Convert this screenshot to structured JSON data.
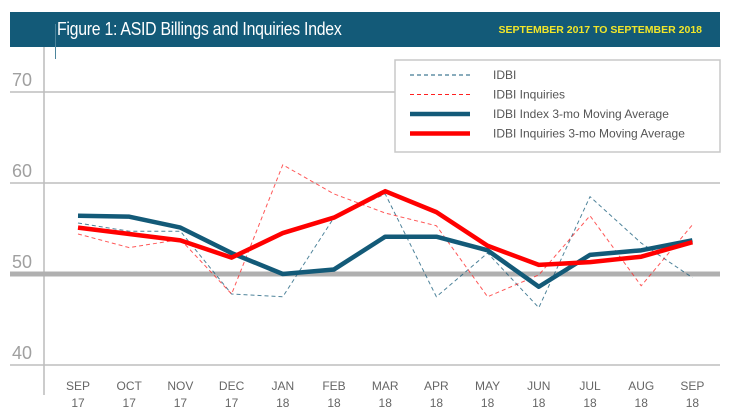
{
  "chart_data": {
    "type": "line",
    "title": "Figure 1: ASID Billings and Inquiries Index",
    "subtitle": "SEPTEMBER 2017 TO SEPTEMBER 2018",
    "categories": [
      [
        "SEP",
        "17"
      ],
      [
        "OCT",
        "17"
      ],
      [
        "NOV",
        "17"
      ],
      [
        "DEC",
        "17"
      ],
      [
        "JAN",
        "18"
      ],
      [
        "FEB",
        "18"
      ],
      [
        "MAR",
        "18"
      ],
      [
        "APR",
        "18"
      ],
      [
        "MAY",
        "18"
      ],
      [
        "JUN",
        "18"
      ],
      [
        "JUL",
        "18"
      ],
      [
        "AUG",
        "18"
      ],
      [
        "SEP",
        "18"
      ]
    ],
    "ylim": [
      40,
      70
    ],
    "yticks": [
      "40",
      "50",
      "60",
      "70"
    ],
    "grid": true,
    "legend_position": "top-right",
    "series": [
      {
        "name": "IDBI",
        "color": "#135a78",
        "style": "dashed",
        "values": [
          55.6,
          54.7,
          54.7,
          47.8,
          47.5,
          56.2,
          58.8,
          47.5,
          52.3,
          46.3,
          58.5,
          53.4,
          49.6
        ]
      },
      {
        "name": "IDBI Inquiries",
        "color": "#ff2020",
        "style": "dashed",
        "values": [
          54.4,
          52.9,
          53.8,
          47.8,
          62.0,
          58.8,
          56.7,
          55.3,
          47.5,
          49.9,
          56.4,
          48.7,
          55.4
        ]
      },
      {
        "name": "IDBI Index 3-mo Moving Average",
        "color": "#135a78",
        "style": "solid",
        "values": [
          56.4,
          56.3,
          55.1,
          52.3,
          50.0,
          50.5,
          54.1,
          54.1,
          52.6,
          48.6,
          52.1,
          52.6,
          53.7
        ]
      },
      {
        "name": "IDBI Inquiries 3-mo Moving Average",
        "color": "#ff0000",
        "style": "solid",
        "values": [
          55.1,
          54.4,
          53.7,
          51.8,
          54.5,
          56.2,
          59.1,
          56.8,
          53.1,
          51.0,
          51.3,
          51.9,
          53.5
        ]
      }
    ]
  }
}
